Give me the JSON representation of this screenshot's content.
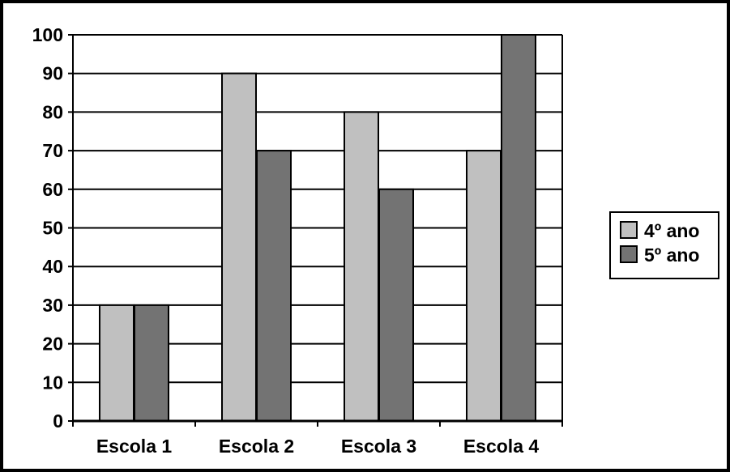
{
  "chart_data": {
    "type": "bar",
    "title": "",
    "xlabel": "",
    "ylabel": "",
    "categories": [
      "Escola 1",
      "Escola 2",
      "Escola 3",
      "Escola 4"
    ],
    "series": [
      {
        "name": "4º ano",
        "values": [
          30,
          90,
          80,
          70
        ],
        "color": "#c0c0c0"
      },
      {
        "name": "5º ano",
        "values": [
          30,
          70,
          60,
          100
        ],
        "color": "#737373"
      }
    ],
    "ylim": [
      0,
      100
    ],
    "yticks": [
      0,
      10,
      20,
      30,
      40,
      50,
      60,
      70,
      80,
      90,
      100
    ],
    "grid": true,
    "legend_position": "right"
  },
  "colors": {
    "border": "#000000",
    "gridline": "#000000",
    "bar_outline": "#000000"
  }
}
